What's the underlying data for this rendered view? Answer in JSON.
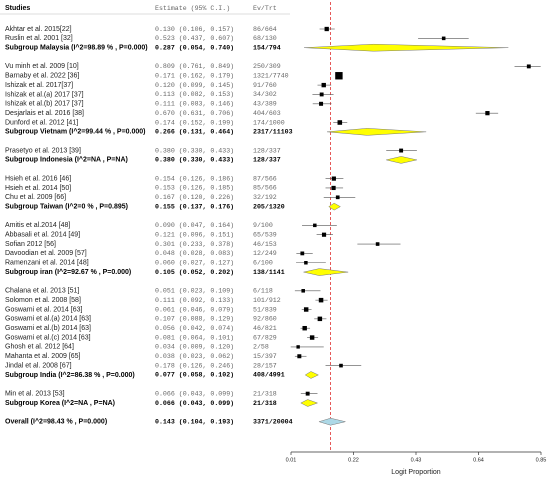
{
  "chart_data": {
    "type": "forest",
    "columns": [
      "Studies",
      "Estimate (95% C.I.)",
      "Ev/Trt"
    ],
    "x_label": "Logit Proportion",
    "xlim": [
      0.01,
      0.85
    ],
    "xticks": [
      0.01,
      0.22,
      0.43,
      0.64,
      0.85
    ],
    "study_color": "#000000",
    "subgroup_color": "#ffff00",
    "overall_color": "#add8e6",
    "reference_color": "#e03030",
    "rows": [
      {
        "kind": "study",
        "study": "Akhtar et al. 2015[22]",
        "estimate": 0.13,
        "lower": 0.106,
        "upper": 0.157,
        "ci_label": "0.130 (0.106, 0.157)",
        "ev_trt": "86/664"
      },
      {
        "kind": "study",
        "study": "Ruslin et al. 2001 [32]",
        "estimate": 0.523,
        "lower": 0.437,
        "upper": 0.607,
        "ci_label": "0.523 (0.437, 0.607)",
        "ev_trt": "68/130"
      },
      {
        "kind": "subgroup",
        "study": "Subgroup Malaysia  (I^2=98.89 % , P=0.000)",
        "estimate": 0.287,
        "lower": 0.054,
        "upper": 0.74,
        "ci_label": "0.287 (0.054, 0.740)",
        "ev_trt": "154/794"
      },
      {
        "kind": "study",
        "study": "Vu minh et al. 2009 [10]",
        "estimate": 0.809,
        "lower": 0.761,
        "upper": 0.849,
        "ci_label": "0.809 (0.761, 0.849)",
        "ev_trt": "250/309"
      },
      {
        "kind": "study",
        "study": "Barnaby et al. 2022 [36]",
        "estimate": 0.171,
        "lower": 0.162,
        "upper": 0.179,
        "ci_label": "0.171 (0.162, 0.179)",
        "ev_trt": "1321/7740"
      },
      {
        "kind": "study",
        "study": "Ishizak et al. 2017[37]",
        "estimate": 0.12,
        "lower": 0.099,
        "upper": 0.145,
        "ci_label": "0.120 (0.099, 0.145)",
        "ev_trt": "91/760"
      },
      {
        "kind": "study",
        "study": "Ishizak et al.(a) 2017 [37]",
        "estimate": 0.113,
        "lower": 0.082,
        "upper": 0.153,
        "ci_label": "0.113 (0.082, 0.153)",
        "ev_trt": "34/302"
      },
      {
        "kind": "study",
        "study": "Ishizak et al.(b) 2017 [37]",
        "estimate": 0.111,
        "lower": 0.083,
        "upper": 0.146,
        "ci_label": "0.111 (0.083, 0.146)",
        "ev_trt": "43/389"
      },
      {
        "kind": "study",
        "study": "Desjarlais et al. 2016 [38]",
        "estimate": 0.67,
        "lower": 0.631,
        "upper": 0.706,
        "ci_label": "0.670 (0.631, 0.706)",
        "ev_trt": "404/603"
      },
      {
        "kind": "study",
        "study": "Dunford et al. 2012 [41]",
        "estimate": 0.174,
        "lower": 0.152,
        "upper": 0.199,
        "ci_label": "0.174 (0.152, 0.199)",
        "ev_trt": "174/1000"
      },
      {
        "kind": "subgroup",
        "study": "Subgroup Vietnam  (I^2=99.44 % , P=0.000)",
        "estimate": 0.266,
        "lower": 0.131,
        "upper": 0.464,
        "ci_label": "0.266 (0.131, 0.464)",
        "ev_trt": "2317/11103"
      },
      {
        "kind": "study",
        "study": "Prasetyo et al. 2013 [39]",
        "estimate": 0.38,
        "lower": 0.33,
        "upper": 0.433,
        "ci_label": "0.380 (0.330, 0.433)",
        "ev_trt": "128/337"
      },
      {
        "kind": "subgroup",
        "study": "Subgroup Indonesia  (I^2=NA , P=NA)",
        "estimate": 0.38,
        "lower": 0.33,
        "upper": 0.433,
        "ci_label": "0.380 (0.330, 0.433)",
        "ev_trt": "128/337"
      },
      {
        "kind": "study",
        "study": "Hsieh et al. 2016 [46]",
        "estimate": 0.154,
        "lower": 0.126,
        "upper": 0.186,
        "ci_label": "0.154 (0.126, 0.186)",
        "ev_trt": "87/566"
      },
      {
        "kind": "study",
        "study": "Hsieh et al. 2014 [50]",
        "estimate": 0.153,
        "lower": 0.126,
        "upper": 0.185,
        "ci_label": "0.153 (0.126, 0.185)",
        "ev_trt": "85/566"
      },
      {
        "kind": "study",
        "study": "Chu et al. 2009 [66]",
        "estimate": 0.167,
        "lower": 0.12,
        "upper": 0.226,
        "ci_label": "0.167 (0.120, 0.226)",
        "ev_trt": "32/192"
      },
      {
        "kind": "subgroup",
        "study": "Subgroup Taiwan  (I^2=0 % , P=0.895)",
        "estimate": 0.155,
        "lower": 0.137,
        "upper": 0.176,
        "ci_label": "0.155 (0.137, 0.176)",
        "ev_trt": "205/1320"
      },
      {
        "kind": "study",
        "study": "Amitis et al.2014  [48]",
        "estimate": 0.09,
        "lower": 0.047,
        "upper": 0.164,
        "ci_label": "0.090 (0.047, 0.164)",
        "ev_trt": "9/100"
      },
      {
        "kind": "study",
        "study": "Abbasali et al. 2014 [49]",
        "estimate": 0.121,
        "lower": 0.096,
        "upper": 0.151,
        "ci_label": "0.121 (0.096, 0.151)",
        "ev_trt": "65/539"
      },
      {
        "kind": "study",
        "study": "Sofian 2012 [56]",
        "estimate": 0.301,
        "lower": 0.233,
        "upper": 0.378,
        "ci_label": "0.301 (0.233, 0.378)",
        "ev_trt": "46/153"
      },
      {
        "kind": "study",
        "study": "Davoodian et al. 2009 [57]",
        "estimate": 0.048,
        "lower": 0.028,
        "upper": 0.083,
        "ci_label": "0.048 (0.028, 0.083)",
        "ev_trt": "12/249"
      },
      {
        "kind": "study",
        "study": "Ramenzani et al. 2014 [48]",
        "estimate": 0.06,
        "lower": 0.027,
        "upper": 0.127,
        "ci_label": "0.060 (0.027, 0.127)",
        "ev_trt": "6/100"
      },
      {
        "kind": "subgroup",
        "study": "Subgroup iran  (I^2=92.67 % , P=0.000)",
        "estimate": 0.105,
        "lower": 0.052,
        "upper": 0.202,
        "ci_label": "0.105 (0.052, 0.202)",
        "ev_trt": "138/1141"
      },
      {
        "kind": "study",
        "study": "Chalana et al. 2013 [51]",
        "estimate": 0.051,
        "lower": 0.023,
        "upper": 0.109,
        "ci_label": "0.051 (0.023, 0.109)",
        "ev_trt": "6/118"
      },
      {
        "kind": "study",
        "study": "Solomon et al. 2008 [58]",
        "estimate": 0.111,
        "lower": 0.092,
        "upper": 0.133,
        "ci_label": "0.111 (0.092, 0.133)",
        "ev_trt": "101/912"
      },
      {
        "kind": "study",
        "study": "Goswami et al. 2014 [63]",
        "estimate": 0.061,
        "lower": 0.046,
        "upper": 0.079,
        "ci_label": "0.061 (0.046, 0.079)",
        "ev_trt": "51/839"
      },
      {
        "kind": "study",
        "study": "Goswami et al.(a) 2014 [63]",
        "estimate": 0.107,
        "lower": 0.088,
        "upper": 0.129,
        "ci_label": "0.107 (0.088, 0.129)",
        "ev_trt": "92/860"
      },
      {
        "kind": "study",
        "study": "Goswami et al.(b) 2014 [63]",
        "estimate": 0.056,
        "lower": 0.042,
        "upper": 0.074,
        "ci_label": "0.056 (0.042, 0.074)",
        "ev_trt": "46/821"
      },
      {
        "kind": "study",
        "study": "Goswami et al.(c) 2014 [63]",
        "estimate": 0.081,
        "lower": 0.064,
        "upper": 0.101,
        "ci_label": "0.081 (0.064, 0.101)",
        "ev_trt": "67/829"
      },
      {
        "kind": "study",
        "study": "Ghosh et al. 2012 [64]",
        "estimate": 0.034,
        "lower": 0.009,
        "upper": 0.12,
        "ci_label": "0.034 (0.009, 0.120)",
        "ev_trt": "2/58"
      },
      {
        "kind": "study",
        "study": "Mahanta et al. 2009 [65]",
        "estimate": 0.038,
        "lower": 0.023,
        "upper": 0.062,
        "ci_label": "0.038 (0.023, 0.062)",
        "ev_trt": "15/397"
      },
      {
        "kind": "study",
        "study": "Jindal et al. 2008 [67]",
        "estimate": 0.178,
        "lower": 0.126,
        "upper": 0.246,
        "ci_label": "0.178 (0.126, 0.246)",
        "ev_trt": "28/157"
      },
      {
        "kind": "subgroup",
        "study": "Subgroup India  (I^2=86.38 % , P=0.000)",
        "estimate": 0.077,
        "lower": 0.058,
        "upper": 0.102,
        "ci_label": "0.077 (0.058, 0.102)",
        "ev_trt": "408/4991"
      },
      {
        "kind": "study",
        "study": "Min et al. 2013  [53]",
        "estimate": 0.066,
        "lower": 0.043,
        "upper": 0.099,
        "ci_label": "0.066 (0.043, 0.099)",
        "ev_trt": "21/318"
      },
      {
        "kind": "subgroup",
        "study": "Subgroup Korea  (I^2=NA , P=NA)",
        "estimate": 0.066,
        "lower": 0.043,
        "upper": 0.099,
        "ci_label": "0.066 (0.043, 0.099)",
        "ev_trt": "21/318"
      },
      {
        "kind": "overall",
        "study": "Overall  (I^2=98.43 % , P=0.000)",
        "estimate": 0.143,
        "lower": 0.104,
        "upper": 0.193,
        "ci_label": "0.143 (0.104, 0.193)",
        "ev_trt": "3371/20004"
      }
    ]
  }
}
